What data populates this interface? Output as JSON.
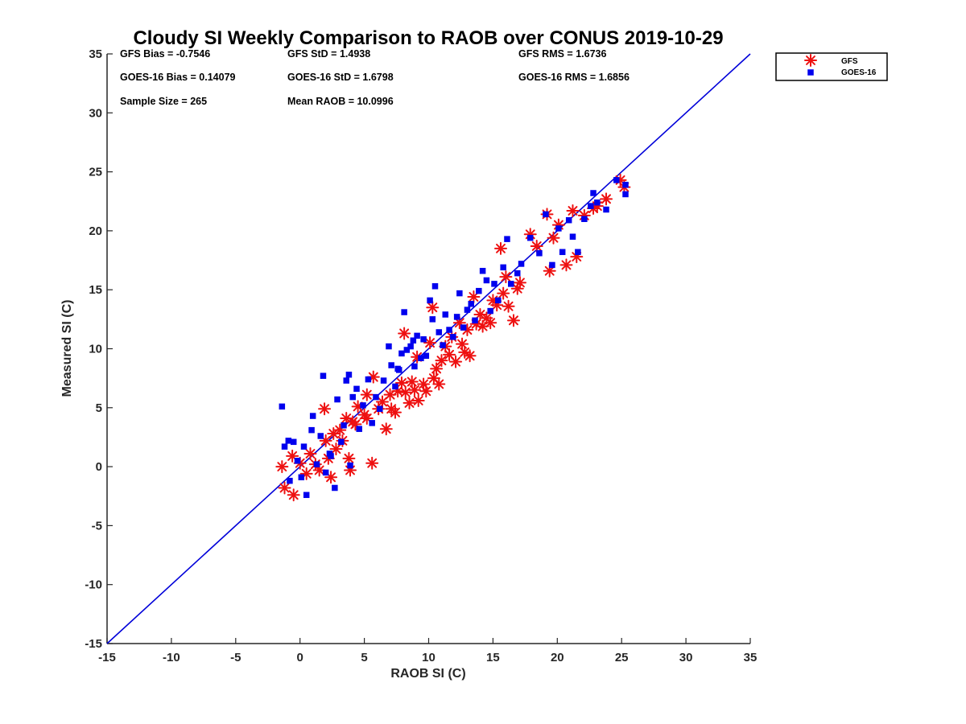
{
  "chart_data": {
    "type": "scatter",
    "title": "Cloudy SI Weekly Comparison to RAOB over CONUS 2019-10-29",
    "xlabel": "RAOB SI (C)",
    "ylabel": "Measured SI (C)",
    "xlim": [
      -15,
      35
    ],
    "ylim": [
      -15,
      35
    ],
    "xticks": [
      -15,
      -10,
      -5,
      0,
      5,
      10,
      15,
      20,
      25,
      30,
      35
    ],
    "yticks": [
      -15,
      -10,
      -5,
      0,
      5,
      10,
      15,
      20,
      25,
      30,
      35
    ],
    "grid": false,
    "legend_position": "top-right outside",
    "stats": [
      "GFS Bias = -0.7546",
      "GFS StD = 1.4938",
      "GFS RMS = 1.6736",
      "GOES-16 Bias = 0.14079",
      "GOES-16 StD = 1.6798",
      "GOES-16 RMS = 1.6856",
      "Sample Size = 265",
      "Mean RAOB = 10.0996"
    ],
    "reference_line": {
      "x": [
        -15,
        35
      ],
      "y": [
        -15,
        35
      ],
      "color": "#0000d9"
    },
    "series": [
      {
        "name": "GFS",
        "marker": "asterisk",
        "color": "#ee1111",
        "points": [
          [
            -1.4,
            0
          ],
          [
            -1.2,
            -1.8
          ],
          [
            -0.5,
            -2.4
          ],
          [
            -0.6,
            0.9
          ],
          [
            0,
            0.3
          ],
          [
            0.5,
            -0.6
          ],
          [
            0.8,
            1.1
          ],
          [
            1.2,
            0.2
          ],
          [
            1.5,
            -0.3
          ],
          [
            1.9,
            4.9
          ],
          [
            2.0,
            2.2
          ],
          [
            2.2,
            0.7
          ],
          [
            2.4,
            -0.9
          ],
          [
            2.8,
            1.5
          ],
          [
            3.1,
            3.1
          ],
          [
            3.3,
            2.2
          ],
          [
            3.6,
            4.1
          ],
          [
            3.8,
            0.7
          ],
          [
            3.9,
            -0.3
          ],
          [
            4.3,
            3.6
          ],
          [
            4.5,
            5.1
          ],
          [
            5.0,
            4.4
          ],
          [
            5.2,
            6.1
          ],
          [
            5.6,
            0.3
          ],
          [
            5.7,
            7.6
          ],
          [
            6.1,
            4.9
          ],
          [
            6.4,
            5.5
          ],
          [
            6.7,
            3.2
          ],
          [
            7.0,
            6.1
          ],
          [
            7.1,
            4.9
          ],
          [
            7.4,
            4.6
          ],
          [
            7.6,
            6.4
          ],
          [
            7.9,
            7.1
          ],
          [
            8.1,
            11.3
          ],
          [
            8.2,
            6.3
          ],
          [
            8.5,
            5.4
          ],
          [
            8.7,
            7.2
          ],
          [
            8.9,
            6.5
          ],
          [
            9.1,
            9.3
          ],
          [
            9.2,
            5.6
          ],
          [
            9.6,
            7.0
          ],
          [
            9.8,
            6.4
          ],
          [
            10.1,
            10.5
          ],
          [
            10.3,
            13.5
          ],
          [
            10.4,
            7.5
          ],
          [
            10.6,
            8.3
          ],
          [
            10.8,
            7.0
          ],
          [
            11.0,
            9.0
          ],
          [
            11.3,
            10.2
          ],
          [
            11.6,
            9.5
          ],
          [
            11.8,
            11.0
          ],
          [
            12.1,
            8.9
          ],
          [
            12.4,
            12.2
          ],
          [
            12.6,
            10.4
          ],
          [
            12.8,
            9.7
          ],
          [
            13.0,
            11.6
          ],
          [
            13.2,
            9.4
          ],
          [
            13.5,
            14.4
          ],
          [
            13.7,
            12.1
          ],
          [
            14.0,
            12.9
          ],
          [
            14.2,
            11.9
          ],
          [
            14.5,
            12.6
          ],
          [
            14.8,
            12.2
          ],
          [
            15.0,
            14.1
          ],
          [
            15.3,
            13.7
          ],
          [
            15.6,
            18.5
          ],
          [
            15.8,
            14.7
          ],
          [
            16.0,
            16.1
          ],
          [
            16.2,
            13.6
          ],
          [
            16.6,
            12.4
          ],
          [
            16.9,
            15.1
          ],
          [
            17.1,
            15.6
          ],
          [
            17.9,
            19.7
          ],
          [
            18.4,
            18.7
          ],
          [
            19.2,
            21.4
          ],
          [
            19.4,
            16.6
          ],
          [
            19.7,
            19.4
          ],
          [
            20.1,
            20.5
          ],
          [
            20.7,
            17.1
          ],
          [
            21.2,
            21.7
          ],
          [
            21.5,
            17.8
          ],
          [
            22.1,
            21.3
          ],
          [
            22.8,
            21.9
          ],
          [
            23.1,
            22.1
          ],
          [
            23.8,
            22.7
          ],
          [
            24.9,
            24.3
          ],
          [
            25.2,
            23.7
          ],
          [
            5.2,
            4.1
          ],
          [
            4.1,
            3.8
          ],
          [
            2.6,
            2.8
          ]
        ]
      },
      {
        "name": "GOES-16",
        "marker": "square",
        "color": "#0000ee",
        "points": [
          [
            -1.4,
            5.1
          ],
          [
            -1.2,
            1.7
          ],
          [
            -0.9,
            2.2
          ],
          [
            -0.8,
            -1.2
          ],
          [
            -0.5,
            2.1
          ],
          [
            -0.2,
            0.5
          ],
          [
            0.1,
            -0.9
          ],
          [
            0.3,
            1.7
          ],
          [
            0.5,
            -2.4
          ],
          [
            0.9,
            3.1
          ],
          [
            1.0,
            4.3
          ],
          [
            1.3,
            0.2
          ],
          [
            1.6,
            2.6
          ],
          [
            1.8,
            7.7
          ],
          [
            2.0,
            -0.5
          ],
          [
            2.3,
            1.1
          ],
          [
            2.7,
            -1.8
          ],
          [
            2.9,
            5.7
          ],
          [
            3.2,
            2.1
          ],
          [
            3.4,
            3.5
          ],
          [
            3.6,
            7.3
          ],
          [
            3.8,
            7.8
          ],
          [
            3.9,
            0.1
          ],
          [
            4.1,
            5.9
          ],
          [
            4.4,
            6.6
          ],
          [
            4.6,
            3.2
          ],
          [
            4.9,
            5.2
          ],
          [
            5.3,
            7.4
          ],
          [
            5.6,
            3.7
          ],
          [
            5.9,
            5.9
          ],
          [
            6.2,
            4.9
          ],
          [
            6.5,
            7.3
          ],
          [
            6.9,
            10.2
          ],
          [
            7.1,
            8.6
          ],
          [
            7.4,
            6.8
          ],
          [
            7.6,
            8.3
          ],
          [
            7.9,
            9.6
          ],
          [
            8.1,
            13.1
          ],
          [
            8.3,
            9.9
          ],
          [
            8.6,
            10.2
          ],
          [
            8.9,
            8.5
          ],
          [
            9.1,
            11.1
          ],
          [
            9.4,
            9.2
          ],
          [
            9.6,
            10.8
          ],
          [
            9.8,
            9.4
          ],
          [
            10.1,
            14.1
          ],
          [
            10.3,
            12.5
          ],
          [
            10.5,
            15.3
          ],
          [
            10.8,
            11.4
          ],
          [
            11.1,
            10.3
          ],
          [
            11.3,
            12.9
          ],
          [
            11.6,
            11.6
          ],
          [
            11.9,
            11.0
          ],
          [
            12.2,
            12.7
          ],
          [
            12.4,
            14.7
          ],
          [
            12.7,
            11.8
          ],
          [
            13.0,
            13.3
          ],
          [
            13.3,
            13.8
          ],
          [
            13.6,
            12.4
          ],
          [
            13.9,
            14.9
          ],
          [
            14.2,
            16.6
          ],
          [
            14.5,
            15.8
          ],
          [
            14.8,
            13.2
          ],
          [
            15.1,
            15.5
          ],
          [
            15.4,
            14.1
          ],
          [
            15.8,
            16.9
          ],
          [
            16.1,
            19.3
          ],
          [
            16.4,
            15.5
          ],
          [
            16.9,
            16.4
          ],
          [
            17.2,
            17.2
          ],
          [
            17.9,
            19.4
          ],
          [
            18.6,
            18.1
          ],
          [
            19.1,
            21.4
          ],
          [
            19.6,
            17.1
          ],
          [
            20.1,
            20.2
          ],
          [
            20.4,
            18.2
          ],
          [
            20.9,
            20.9
          ],
          [
            21.2,
            19.5
          ],
          [
            21.6,
            18.2
          ],
          [
            22.1,
            21.0
          ],
          [
            22.6,
            22.1
          ],
          [
            22.8,
            23.2
          ],
          [
            23.1,
            22.4
          ],
          [
            23.8,
            21.8
          ],
          [
            24.6,
            24.3
          ],
          [
            25.3,
            23.9
          ],
          [
            25.3,
            23.1
          ],
          [
            7.7,
            8.2
          ],
          [
            8.8,
            10.7
          ],
          [
            2.4,
            0.9
          ]
        ]
      }
    ]
  }
}
